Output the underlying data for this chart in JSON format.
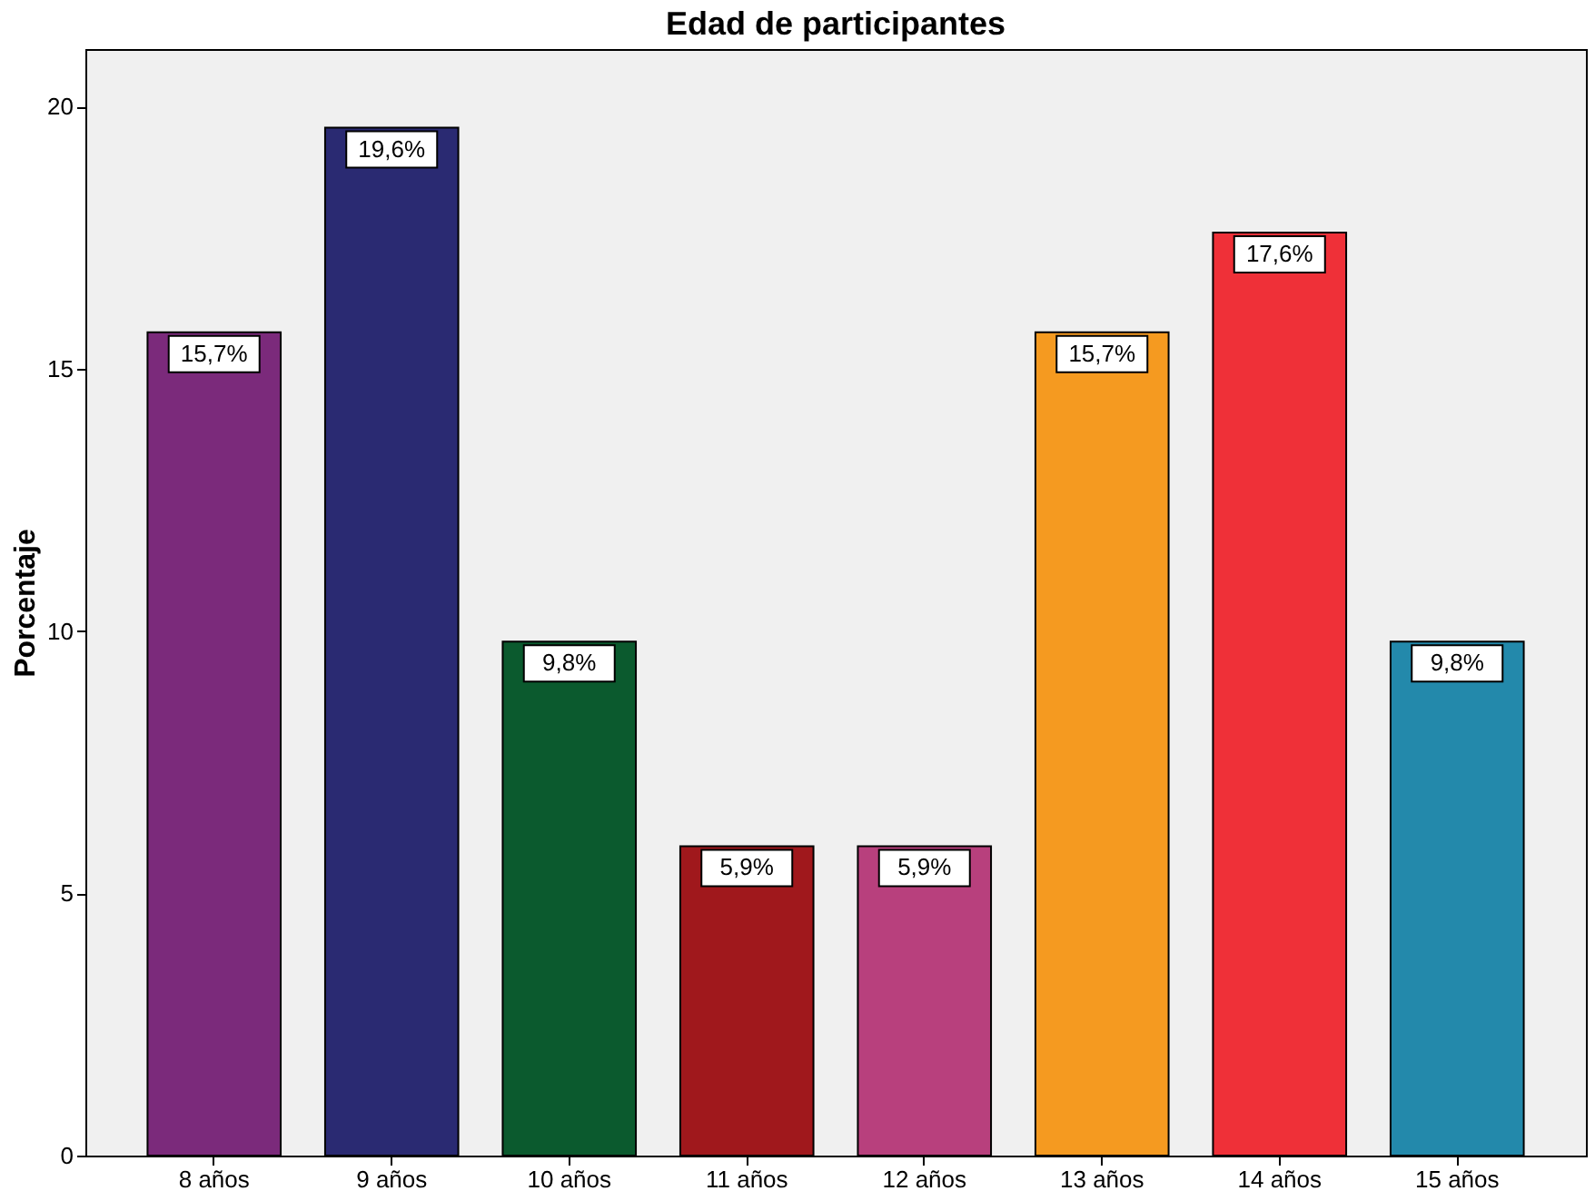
{
  "chart_data": {
    "type": "bar",
    "title": "Edad de participantes",
    "ylabel": "Porcentaje",
    "categories": [
      "8 años",
      "9 años",
      "10 años",
      "11 años",
      "12 años",
      "13 años",
      "14 años",
      "15 años"
    ],
    "values": [
      15.7,
      19.6,
      9.8,
      5.9,
      5.9,
      15.7,
      17.6,
      9.8
    ],
    "value_labels": [
      "15,7%",
      "19,6%",
      "9,8%",
      "5,9%",
      "5,9%",
      "15,7%",
      "17,6%",
      "9,8%"
    ],
    "colors": [
      "#7b2a7b",
      "#2a2a72",
      "#0b5a2e",
      "#a0181c",
      "#b8407d",
      "#f59a20",
      "#ef3038",
      "#2389ab"
    ],
    "ylim": [
      0,
      21.1
    ],
    "yticks": [
      0,
      5,
      10,
      15,
      20
    ],
    "grid": false
  }
}
